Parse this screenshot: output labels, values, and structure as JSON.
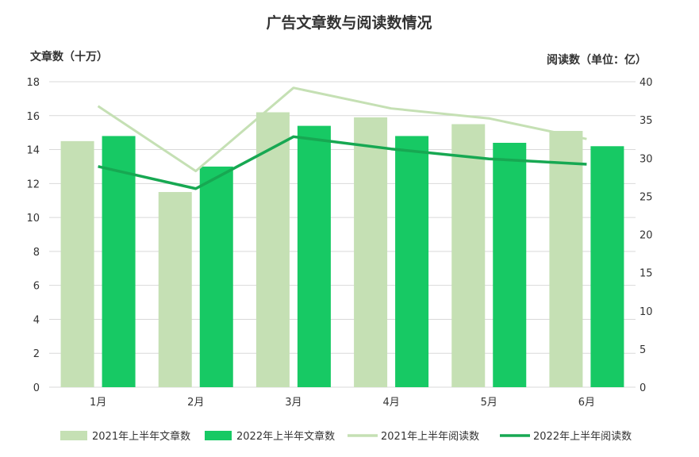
{
  "chart_data": {
    "type": "bar",
    "title": "广告文章数与阅读数情况",
    "categories": [
      "1月",
      "2月",
      "3月",
      "4月",
      "5月",
      "6月"
    ],
    "bar_series": [
      {
        "name": "2021年上半年文章数",
        "values": [
          14.5,
          11.5,
          16.2,
          15.9,
          15.5,
          15.1
        ],
        "color": "#c5e0b4"
      },
      {
        "name": "2022年上半年文章数",
        "values": [
          14.8,
          13.0,
          15.4,
          14.8,
          14.4,
          14.2
        ],
        "color": "#17c964"
      }
    ],
    "line_series": [
      {
        "name": "2021年上半年阅读数",
        "values": [
          36.8,
          28.3,
          39.2,
          36.5,
          35.2,
          32.5
        ],
        "color": "#c5e0b4"
      },
      {
        "name": "2022年上半年阅读数",
        "values": [
          28.9,
          26.0,
          32.8,
          31.2,
          29.9,
          29.2
        ],
        "color": "#17a852"
      }
    ],
    "y_left": {
      "label": "文章数（十万）",
      "ylim": [
        0,
        18
      ],
      "ticks": [
        "0",
        "2",
        "4",
        "6",
        "8",
        "10",
        "12",
        "14",
        "16",
        "18"
      ]
    },
    "y_right": {
      "label": "阅读数（单位：亿）",
      "ylim": [
        0,
        40
      ],
      "ticks": [
        "0",
        "5",
        "10",
        "15",
        "20",
        "25",
        "30",
        "35",
        "40"
      ]
    },
    "grid": true,
    "legend_position": "bottom"
  }
}
